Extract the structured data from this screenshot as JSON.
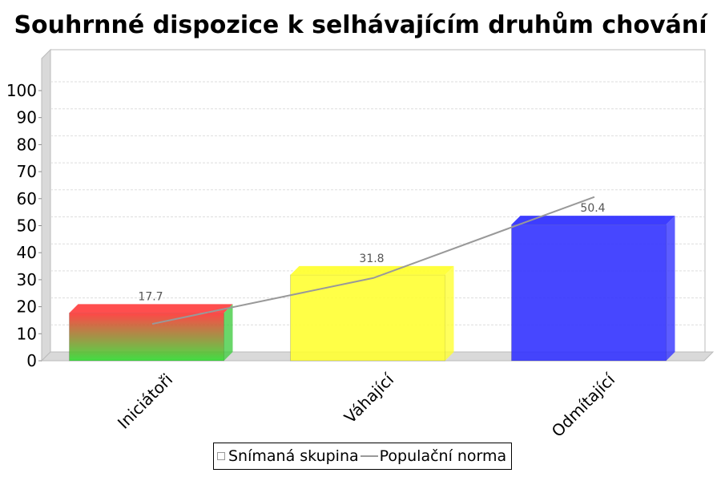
{
  "chart_data": {
    "type": "bar",
    "title": "Souhrnné dispozice k selhávajícím druhům chování",
    "xlabel": "",
    "ylabel": "",
    "ylim": [
      0,
      110
    ],
    "yticks": [
      0,
      10,
      20,
      30,
      40,
      50,
      60,
      70,
      80,
      90,
      100
    ],
    "grid": true,
    "legend_position": "bottom",
    "categories": [
      "Iniciátoři",
      "Váhající",
      "Odmítající"
    ],
    "series": [
      {
        "name": "Snímaná skupina",
        "kind": "bar",
        "values": [
          17.7,
          31.8,
          50.4
        ],
        "labels": [
          "17.7",
          "31.8",
          "50.4"
        ],
        "colors": [
          "gradient-red-green",
          "#ffff33",
          "#3333ff"
        ]
      },
      {
        "name": "Populační norma",
        "kind": "line",
        "color": "#999999",
        "values": [
          12,
          29,
          59
        ]
      }
    ]
  }
}
